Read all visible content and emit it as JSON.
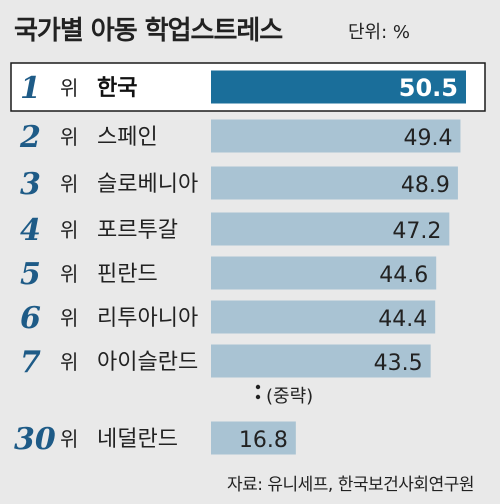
{
  "header": {
    "title": "국가별 아동 학업스트레스",
    "unit": "단위: %"
  },
  "chart_data": {
    "type": "bar",
    "orientation": "horizontal",
    "rank_suffix": "위",
    "rows": [
      {
        "rank": "1",
        "country": "한국",
        "value": 50.5,
        "highlight": true
      },
      {
        "rank": "2",
        "country": "스페인",
        "value": 49.4
      },
      {
        "rank": "3",
        "country": "슬로베니아",
        "value": 48.9
      },
      {
        "rank": "4",
        "country": "포르투갈",
        "value": 47.2
      },
      {
        "rank": "5",
        "country": "핀란드",
        "value": 44.6
      },
      {
        "rank": "6",
        "country": "리투아니아",
        "value": 44.4
      },
      {
        "rank": "7",
        "country": "아이슬란드",
        "value": 43.5
      },
      {
        "rank": "30",
        "country": "네덜란드",
        "value": 16.8
      }
    ],
    "omission_label": "(중략)",
    "colors": {
      "highlight": "#1a6e9a",
      "bar": "#a9c3d3",
      "rank": "#1e5b87"
    }
  },
  "footer": {
    "source": "자료: 유니세프, 한국보건사회연구원"
  }
}
